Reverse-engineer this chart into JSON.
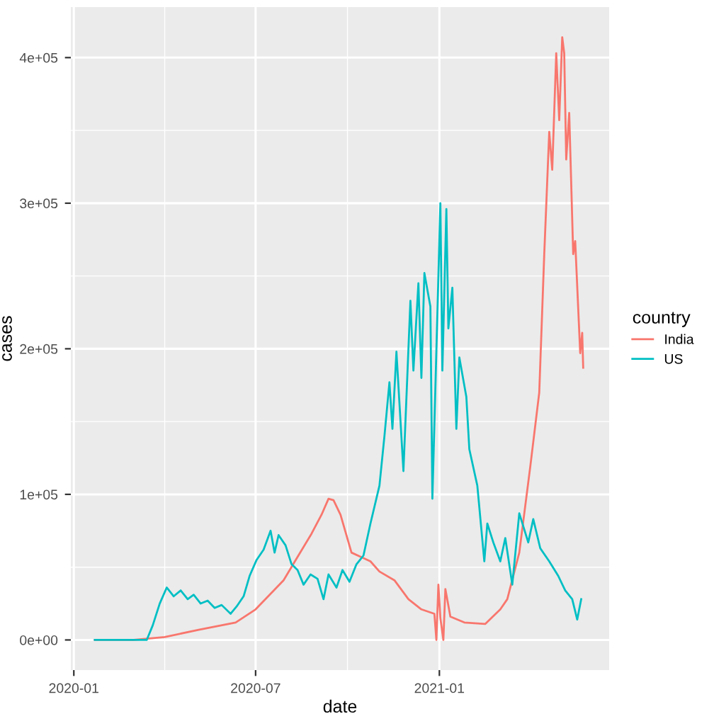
{
  "chart_data": {
    "type": "line",
    "xlabel": "date",
    "ylabel": "cases",
    "legend_title": "country",
    "legend": "right",
    "grid": true,
    "line_style": "solid",
    "xlim": [
      "2019-12-29",
      "2021-06-20"
    ],
    "xticks": [
      {
        "value": "2020-01-01",
        "label": "2020-01"
      },
      {
        "value": "2020-07-01",
        "label": "2020-07"
      },
      {
        "value": "2021-01-01",
        "label": "2021-01"
      }
    ],
    "ylim": [
      -20700,
      434700
    ],
    "yticks": [
      {
        "value": 0,
        "label": "0e+00"
      },
      {
        "value": 100000,
        "label": "1e+05"
      },
      {
        "value": 200000,
        "label": "2e+05"
      },
      {
        "value": 300000,
        "label": "3e+05"
      },
      {
        "value": 400000,
        "label": "4e+05"
      }
    ],
    "series": [
      {
        "name": "India",
        "color": "#f8766d",
        "x": [
          "2020-01-22",
          "2020-03-01",
          "2020-04-01",
          "2020-05-05",
          "2020-06-11",
          "2020-07-01",
          "2020-07-15",
          "2020-07-29",
          "2020-08-12",
          "2020-08-26",
          "2020-09-05",
          "2020-09-12",
          "2020-09-17",
          "2020-09-24",
          "2020-10-05",
          "2020-10-24",
          "2020-11-02",
          "2020-11-17",
          "2020-12-01",
          "2020-12-14",
          "2020-12-27",
          "2020-12-29",
          "2020-12-31",
          "2021-01-02",
          "2021-01-05",
          "2021-01-07",
          "2021-01-12",
          "2021-01-26",
          "2021-02-16",
          "2021-03-03",
          "2021-03-10",
          "2021-03-22",
          "2021-04-02",
          "2021-04-11",
          "2021-04-16",
          "2021-04-21",
          "2021-04-24",
          "2021-04-28",
          "2021-05-01",
          "2021-05-04",
          "2021-05-06",
          "2021-05-08",
          "2021-05-11",
          "2021-05-15",
          "2021-05-17",
          "2021-05-22",
          "2021-05-24",
          "2021-05-25"
        ],
        "values": [
          0,
          0,
          2000,
          7000,
          12000,
          21000,
          31000,
          41000,
          57000,
          73000,
          86000,
          97000,
          96000,
          86000,
          60000,
          54000,
          47000,
          41000,
          28000,
          21000,
          18000,
          0,
          38000,
          15000,
          0,
          35000,
          16000,
          12000,
          11000,
          21000,
          28000,
          60000,
          119000,
          170000,
          265000,
          349000,
          323000,
          403000,
          357000,
          414000,
          403000,
          330000,
          362000,
          265000,
          274000,
          197000,
          211000,
          187000
        ]
      },
      {
        "name": "US",
        "color": "#00bfc4",
        "x": [
          "2020-01-22",
          "2020-03-14",
          "2020-03-20",
          "2020-03-27",
          "2020-04-03",
          "2020-04-10",
          "2020-04-17",
          "2020-04-24",
          "2020-04-30",
          "2020-05-07",
          "2020-05-14",
          "2020-05-21",
          "2020-05-28",
          "2020-06-06",
          "2020-06-12",
          "2020-06-19",
          "2020-06-25",
          "2020-07-02",
          "2020-07-09",
          "2020-07-16",
          "2020-07-20",
          "2020-07-24",
          "2020-07-31",
          "2020-08-06",
          "2020-08-12",
          "2020-08-18",
          "2020-08-25",
          "2020-09-01",
          "2020-09-07",
          "2020-09-12",
          "2020-09-20",
          "2020-09-26",
          "2020-10-03",
          "2020-10-10",
          "2020-10-17",
          "2020-10-24",
          "2020-11-02",
          "2020-11-07",
          "2020-11-12",
          "2020-11-15",
          "2020-11-19",
          "2020-11-26",
          "2020-12-03",
          "2020-12-06",
          "2020-12-11",
          "2020-12-14",
          "2020-12-17",
          "2020-12-23",
          "2020-12-25",
          "2021-01-02",
          "2021-01-04",
          "2021-01-08",
          "2021-01-10",
          "2021-01-14",
          "2021-01-18",
          "2021-01-21",
          "2021-01-28",
          "2021-01-31",
          "2021-02-08",
          "2021-02-15",
          "2021-02-18",
          "2021-02-24",
          "2021-03-03",
          "2021-03-08",
          "2021-03-15",
          "2021-03-22",
          "2021-03-31",
          "2021-04-05",
          "2021-04-12",
          "2021-04-21",
          "2021-04-30",
          "2021-05-07",
          "2021-05-14",
          "2021-05-19",
          "2021-05-23"
        ],
        "values": [
          0,
          0,
          10000,
          25000,
          36000,
          30000,
          34000,
          28000,
          31000,
          25000,
          27000,
          22000,
          24000,
          18000,
          23000,
          30000,
          44000,
          55000,
          62000,
          75000,
          60000,
          72000,
          65000,
          52000,
          48000,
          38000,
          45000,
          42000,
          28000,
          45000,
          36000,
          48000,
          40000,
          52000,
          58000,
          80000,
          106000,
          140000,
          177000,
          145000,
          198000,
          116000,
          233000,
          185000,
          245000,
          180000,
          252000,
          229000,
          97000,
          300000,
          185000,
          296000,
          214000,
          242000,
          145000,
          194000,
          167000,
          131000,
          106000,
          54000,
          80000,
          67000,
          54000,
          70000,
          38000,
          87000,
          67000,
          83000,
          63000,
          54000,
          44000,
          34000,
          28000,
          14000,
          28000
        ]
      }
    ]
  }
}
